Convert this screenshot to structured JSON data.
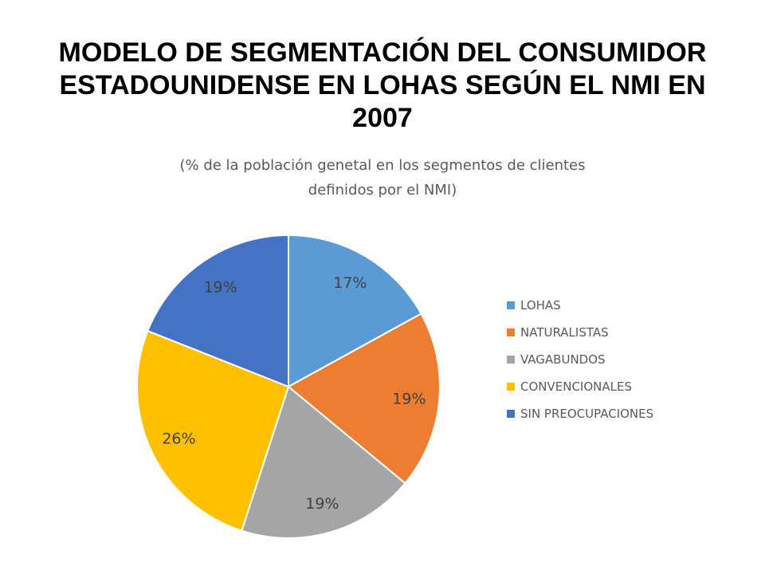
{
  "chart_data": {
    "type": "pie",
    "title": "MODELO DE SEGMENTACIÓN DEL CONSUMIDOR ESTADOUNIDENSE EN LOHAS SEGÚN EL NMI EN 2007",
    "title_lines": [
      "MODELO DE SEGMENTACIÓN DEL CONSUMIDOR",
      "ESTADOUNIDENSE EN LOHAS SEGÚN EL NMI EN",
      "2007"
    ],
    "subtitle_lines": [
      "(% de la población genetal en los segmentos de clientes",
      "definidos por el NMI)"
    ],
    "categories": [
      "LOHAS",
      "NATURALISTAS",
      "VAGABUNDOS",
      "CONVENCIONALES",
      "SIN PREOCUPACIONES"
    ],
    "values": [
      17,
      19,
      19,
      26,
      19
    ],
    "labels": [
      "17%",
      "19%",
      "19%",
      "26%",
      "19%"
    ],
    "colors": [
      "#5B9BD5",
      "#ED7D31",
      "#A5A5A5",
      "#FFC000",
      "#4472C4"
    ],
    "legend_position": "right"
  }
}
